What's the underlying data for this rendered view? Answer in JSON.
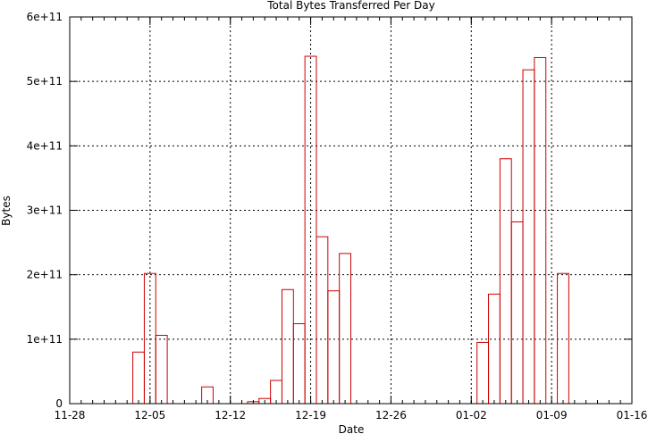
{
  "chart_data": {
    "type": "bar",
    "title": "Total Bytes Transferred Per Day",
    "xlabel": "Date",
    "ylabel": "Bytes",
    "xlim": [
      "11-28",
      "01-16"
    ],
    "ylim": [
      0,
      600000000000
    ],
    "grid": true,
    "x_ticks": [
      "11-28",
      "12-05",
      "12-12",
      "12-19",
      "12-26",
      "01-02",
      "01-09",
      "01-16"
    ],
    "y_ticks": [
      "0",
      "1e+11",
      "2e+11",
      "3e+11",
      "4e+11",
      "5e+11",
      "6e+11"
    ],
    "categories": [
      "12-04",
      "12-05",
      "12-06",
      "12-10",
      "12-14",
      "12-15",
      "12-16",
      "12-17",
      "12-18",
      "12-19",
      "12-20",
      "12-21",
      "12-22",
      "01-03",
      "01-04",
      "01-05",
      "01-06",
      "01-07",
      "01-08",
      "01-10"
    ],
    "values": [
      80000000000,
      202000000000,
      106000000000,
      26000000000,
      3000000000,
      8000000000,
      36000000000,
      177000000000,
      124000000000,
      539000000000,
      259000000000,
      175000000000,
      233000000000,
      95000000000,
      170000000000,
      380000000000,
      282000000000,
      518000000000,
      537000000000,
      202000000000
    ],
    "colors": {
      "bar": "#cc0000",
      "axis": "#000000"
    }
  }
}
